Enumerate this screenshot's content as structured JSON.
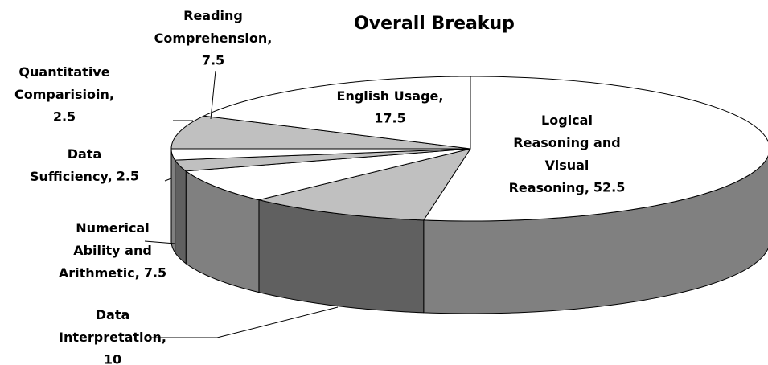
{
  "chart_data": {
    "type": "pie3d",
    "title": "Overall Breakup",
    "categories": [
      "Logical Reasoning and Visual Reasoning",
      "Data Interpretation",
      "Numerical Ability and Arithmetic",
      "Data Sufficiency",
      "Quantitative Comparisioin",
      "Reading Comprehension",
      "English Usage"
    ],
    "values": [
      52.5,
      10,
      7.5,
      2.5,
      2.5,
      7.5,
      17.5
    ],
    "colors": [
      "#ffffff",
      "#c0c0c0",
      "#ffffff",
      "#c0c0c0",
      "#ffffff",
      "#c0c0c0",
      "#ffffff"
    ]
  }
}
